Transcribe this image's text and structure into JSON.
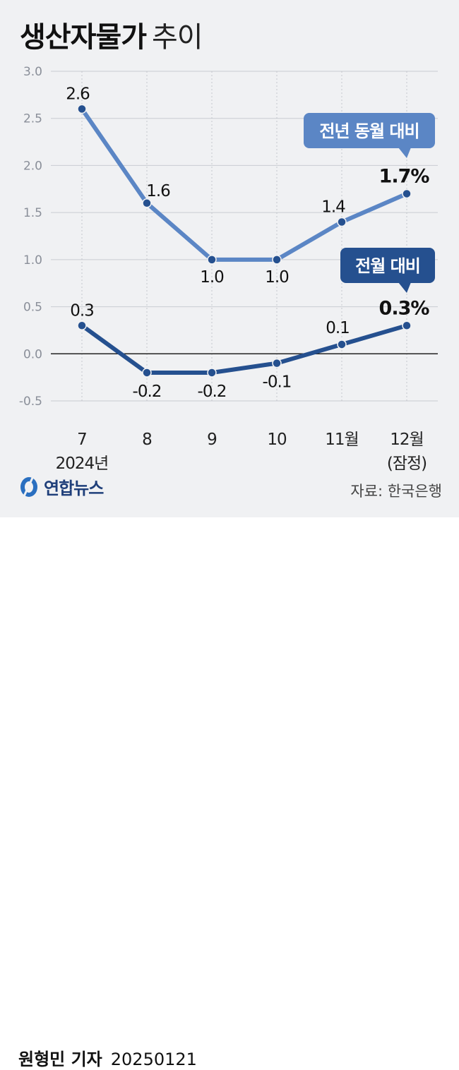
{
  "title": {
    "main": "생산자물가",
    "sub": "추이"
  },
  "source": "자료: 한국은행",
  "logo_text": "연합뉴스",
  "credit": {
    "name": "원형민 기자",
    "date": "20250121"
  },
  "colors": {
    "yoy": "#5b86c5",
    "mom": "#25508f",
    "grid": "#c9ccd2",
    "zero": "#222222",
    "axis_text": "#8a8f99"
  },
  "chart_data": {
    "type": "line",
    "categories": [
      [
        "7",
        "2024년"
      ],
      [
        "8"
      ],
      [
        "9"
      ],
      [
        "10"
      ],
      [
        "11월"
      ],
      [
        "12월",
        "(잠정)"
      ]
    ],
    "ylim": [
      -0.5,
      3.0
    ],
    "yticks": [
      "3.0",
      "2.5",
      "2.0",
      "1.5",
      "1.0",
      "0.5",
      "0.0",
      "-0.5"
    ],
    "grid": true,
    "series": [
      {
        "name": "전년 동월 대비",
        "values": [
          2.6,
          1.6,
          1.0,
          1.0,
          1.4,
          1.7
        ],
        "labels": [
          "2.6",
          "1.6",
          "1.0",
          "1.0",
          "1.4",
          "1.7%"
        ],
        "color": "#5b86c5"
      },
      {
        "name": "전월 대비",
        "values": [
          0.3,
          -0.2,
          -0.2,
          -0.1,
          0.1,
          0.3
        ],
        "labels": [
          "0.3",
          "-0.2",
          "-0.2",
          "-0.1",
          "0.1",
          "0.3%"
        ],
        "color": "#25508f"
      }
    ]
  }
}
